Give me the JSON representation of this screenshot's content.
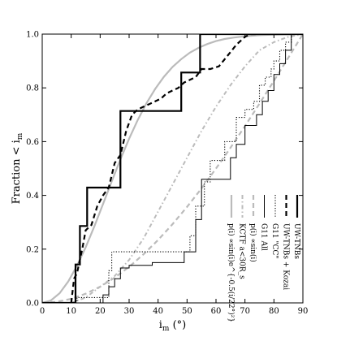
{
  "chart_data": {
    "type": "line",
    "xlabel": "i_m (°)",
    "ylabel": "Fraction < i_m",
    "xlim": [
      0,
      90
    ],
    "ylim": [
      0,
      1
    ],
    "x_ticks": [
      0,
      10,
      20,
      30,
      40,
      50,
      60,
      70,
      80,
      90
    ],
    "y_ticks": [
      0.0,
      0.2,
      0.4,
      0.6,
      0.8,
      1.0
    ],
    "x_tick_labels": [
      "0",
      "10",
      "20",
      "30",
      "40",
      "50",
      "60",
      "70",
      "80",
      "90"
    ],
    "y_tick_labels": [
      "0.0",
      "0.2",
      "0.4",
      "0.6",
      "0.8",
      "1.0"
    ],
    "legend_position": "lower-right (rotated labels)",
    "series": [
      {
        "name": "UW-TNBs",
        "color": "#000000",
        "style": "solid-thick",
        "step": true,
        "x": [
          0,
          11.5,
          13.0,
          15.5,
          27.0,
          48.0,
          53.5,
          54.5,
          90
        ],
        "y": [
          0.0,
          0.143,
          0.286,
          0.429,
          0.714,
          0.857,
          0.857,
          1.0,
          1.0
        ]
      },
      {
        "name": "UW-TNBs + Kozai",
        "color": "#000000",
        "style": "dashed-thick",
        "step": false,
        "x": [
          10,
          11,
          12,
          13,
          14,
          15,
          17,
          19,
          21,
          23,
          25,
          27,
          29,
          31,
          33,
          35,
          37,
          39,
          41,
          43,
          45,
          47,
          49,
          51,
          53,
          55,
          58,
          61,
          64,
          67,
          70,
          72,
          74
        ],
        "y": [
          0.0,
          0.09,
          0.11,
          0.16,
          0.21,
          0.27,
          0.29,
          0.36,
          0.4,
          0.43,
          0.52,
          0.55,
          0.64,
          0.7,
          0.72,
          0.73,
          0.74,
          0.75,
          0.76,
          0.78,
          0.79,
          0.8,
          0.82,
          0.83,
          0.84,
          0.87,
          0.87,
          0.88,
          0.92,
          0.96,
          0.99,
          1.0,
          1.0
        ]
      },
      {
        "name": "G11 \"CC\"",
        "color": "#000000",
        "style": "dotted",
        "step": true,
        "x": [
          0,
          11,
          12,
          23,
          24,
          26,
          51,
          53,
          56,
          58,
          63,
          67,
          70,
          73,
          75,
          77,
          79,
          80,
          82,
          84,
          86,
          90
        ],
        "y": [
          0.0,
          0.0,
          0.02,
          0.12,
          0.19,
          0.19,
          0.25,
          0.36,
          0.45,
          0.53,
          0.6,
          0.69,
          0.72,
          0.75,
          0.81,
          0.84,
          0.87,
          0.9,
          0.94,
          0.97,
          1.0,
          1.0
        ]
      },
      {
        "name": "G11 All",
        "color": "#000000",
        "style": "solid-thin",
        "step": true,
        "x": [
          0,
          19,
          21,
          23,
          25,
          27,
          30,
          38,
          49,
          53,
          55,
          65,
          67,
          70,
          74,
          76,
          78,
          80,
          82,
          84,
          86,
          90
        ],
        "y": [
          0.0,
          0.0,
          0.03,
          0.06,
          0.09,
          0.13,
          0.14,
          0.15,
          0.19,
          0.31,
          0.46,
          0.54,
          0.59,
          0.66,
          0.7,
          0.75,
          0.79,
          0.85,
          0.89,
          0.94,
          1.0,
          1.0
        ]
      },
      {
        "name": "p(i) ∝ sin(i)",
        "color": "#bbbbbb",
        "style": "dashed-thick",
        "step": false,
        "x": [
          0,
          5,
          10,
          15,
          20,
          25,
          30,
          35,
          40,
          45,
          50,
          55,
          60,
          65,
          70,
          75,
          80,
          85,
          90
        ],
        "y": [
          0.0,
          0.004,
          0.015,
          0.034,
          0.06,
          0.094,
          0.134,
          0.181,
          0.234,
          0.293,
          0.357,
          0.426,
          0.5,
          0.577,
          0.658,
          0.741,
          0.826,
          0.913,
          1.0
        ]
      },
      {
        "name": "KCTF a<30R_s",
        "color": "#bbbbbb",
        "style": "dashdot",
        "step": false,
        "x": [
          10,
          15,
          20,
          25,
          30,
          35,
          40,
          45,
          50,
          55,
          60,
          65,
          70,
          75,
          80,
          85,
          90
        ],
        "y": [
          0.0,
          0.02,
          0.06,
          0.1,
          0.16,
          0.24,
          0.34,
          0.44,
          0.54,
          0.64,
          0.73,
          0.81,
          0.88,
          0.94,
          0.97,
          0.99,
          1.0
        ]
      },
      {
        "name": "p(i) ∝ sin(i)e^{-0.5(i/22°)^2}",
        "color": "#bbbbbb",
        "style": "solid-thick",
        "step": false,
        "x": [
          0,
          3,
          6,
          9,
          12,
          15,
          18,
          21,
          24,
          27,
          30,
          33,
          36,
          39,
          42,
          45,
          48,
          51,
          54,
          57,
          60,
          63,
          66,
          70,
          75,
          80,
          90
        ],
        "y": [
          0.0,
          0.009,
          0.036,
          0.08,
          0.138,
          0.207,
          0.285,
          0.368,
          0.452,
          0.534,
          0.611,
          0.681,
          0.743,
          0.796,
          0.841,
          0.878,
          0.907,
          0.931,
          0.949,
          0.963,
          0.974,
          0.982,
          0.987,
          0.992,
          0.996,
          0.998,
          1.0
        ]
      }
    ],
    "legend_entries": [
      {
        "label": "UW-TNBs",
        "style": "solid-thick",
        "color": "#000000"
      },
      {
        "label": "UW-TNBs + Kozai",
        "style": "dashed-thick",
        "color": "#000000"
      },
      {
        "label": "G11 \"CC\"",
        "style": "dotted",
        "color": "#000000"
      },
      {
        "label": "G11 All",
        "style": "solid-thin",
        "color": "#000000"
      },
      {
        "label": "p(i) ∝sin(i)",
        "style": "dashed-thick",
        "color": "#bbbbbb"
      },
      {
        "label": "KCTF a<30R_s",
        "style": "dashdot",
        "color": "#bbbbbb"
      },
      {
        "label": "p(i) ∝sin(i)e^{-0.5(i/22°)²}",
        "style": "solid-thick",
        "color": "#bbbbbb"
      }
    ]
  }
}
